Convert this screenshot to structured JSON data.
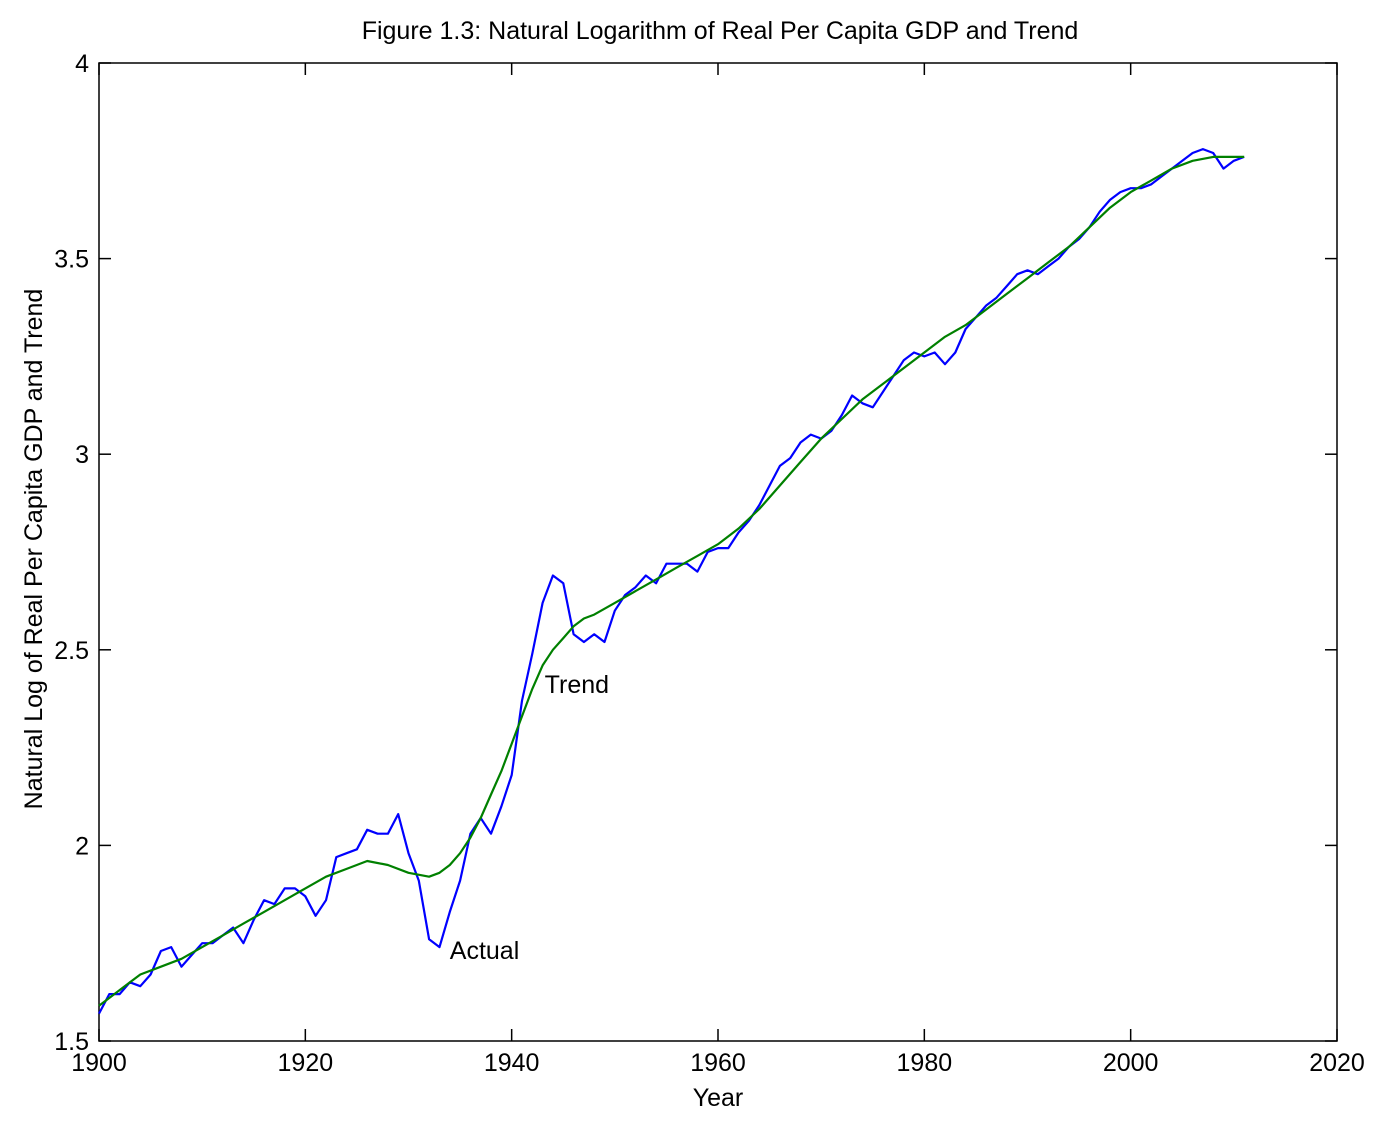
{
  "chart_data": {
    "type": "line",
    "title": "Figure 1.3: Natural Logarithm of Real Per Capita GDP and Trend",
    "xlabel": "Year",
    "ylabel": "Natural Log of Real Per Capita GDP and Trend",
    "xlim": [
      1900,
      2020
    ],
    "ylim": [
      1.5,
      4
    ],
    "xticks": [
      1900,
      1920,
      1940,
      1960,
      1980,
      2000,
      2020
    ],
    "yticks": [
      1.5,
      2,
      2.5,
      3,
      3.5,
      4
    ],
    "xtick_labels": [
      "1900",
      "1920",
      "1940",
      "1960",
      "1980",
      "2000",
      "2020"
    ],
    "ytick_labels": [
      "1.5",
      "2",
      "2.5",
      "3",
      "3.5",
      "4"
    ],
    "grid": false,
    "legend": "none",
    "series": [
      {
        "name": "Actual",
        "color": "#0000ff",
        "x": [
          1900,
          1901,
          1902,
          1903,
          1904,
          1905,
          1906,
          1907,
          1908,
          1909,
          1910,
          1911,
          1912,
          1913,
          1914,
          1915,
          1916,
          1917,
          1918,
          1919,
          1920,
          1921,
          1922,
          1923,
          1924,
          1925,
          1926,
          1927,
          1928,
          1929,
          1930,
          1931,
          1932,
          1933,
          1934,
          1935,
          1936,
          1937,
          1938,
          1939,
          1940,
          1941,
          1942,
          1943,
          1944,
          1945,
          1946,
          1947,
          1948,
          1949,
          1950,
          1951,
          1952,
          1953,
          1954,
          1955,
          1956,
          1957,
          1958,
          1959,
          1960,
          1961,
          1962,
          1963,
          1964,
          1965,
          1966,
          1967,
          1968,
          1969,
          1970,
          1971,
          1972,
          1973,
          1974,
          1975,
          1976,
          1977,
          1978,
          1979,
          1980,
          1981,
          1982,
          1983,
          1984,
          1985,
          1986,
          1987,
          1988,
          1989,
          1990,
          1991,
          1992,
          1993,
          1994,
          1995,
          1996,
          1997,
          1998,
          1999,
          2000,
          2001,
          2002,
          2003,
          2004,
          2005,
          2006,
          2007,
          2008,
          2009,
          2010,
          2011
        ],
        "values": [
          1.57,
          1.62,
          1.62,
          1.65,
          1.64,
          1.67,
          1.73,
          1.74,
          1.69,
          1.72,
          1.75,
          1.75,
          1.77,
          1.79,
          1.75,
          1.81,
          1.86,
          1.85,
          1.89,
          1.89,
          1.87,
          1.82,
          1.86,
          1.97,
          1.98,
          1.99,
          2.04,
          2.03,
          2.03,
          2.08,
          1.98,
          1.91,
          1.76,
          1.74,
          1.83,
          1.91,
          2.03,
          2.07,
          2.03,
          2.1,
          2.18,
          2.37,
          2.49,
          2.62,
          2.69,
          2.67,
          2.54,
          2.52,
          2.54,
          2.52,
          2.6,
          2.64,
          2.66,
          2.69,
          2.67,
          2.72,
          2.72,
          2.72,
          2.7,
          2.75,
          2.76,
          2.76,
          2.8,
          2.83,
          2.87,
          2.92,
          2.97,
          2.99,
          3.03,
          3.05,
          3.04,
          3.06,
          3.1,
          3.15,
          3.13,
          3.12,
          3.16,
          3.2,
          3.24,
          3.26,
          3.25,
          3.26,
          3.23,
          3.26,
          3.32,
          3.35,
          3.38,
          3.4,
          3.43,
          3.46,
          3.47,
          3.46,
          3.48,
          3.5,
          3.53,
          3.55,
          3.58,
          3.62,
          3.65,
          3.67,
          3.68,
          3.68,
          3.69,
          3.71,
          3.73,
          3.75,
          3.77,
          3.78,
          3.77,
          3.73,
          3.75,
          3.76
        ]
      },
      {
        "name": "Trend",
        "color": "#008000",
        "x": [
          1900,
          1902,
          1904,
          1906,
          1908,
          1910,
          1912,
          1914,
          1916,
          1918,
          1920,
          1922,
          1924,
          1926,
          1928,
          1930,
          1932,
          1933,
          1934,
          1935,
          1936,
          1937,
          1938,
          1939,
          1940,
          1941,
          1942,
          1943,
          1944,
          1945,
          1946,
          1947,
          1948,
          1950,
          1952,
          1954,
          1956,
          1958,
          1960,
          1962,
          1964,
          1966,
          1968,
          1970,
          1972,
          1974,
          1976,
          1978,
          1980,
          1982,
          1984,
          1986,
          1988,
          1990,
          1992,
          1994,
          1996,
          1998,
          2000,
          2002,
          2004,
          2006,
          2008,
          2010,
          2011
        ],
        "values": [
          1.59,
          1.63,
          1.67,
          1.69,
          1.71,
          1.74,
          1.77,
          1.8,
          1.83,
          1.86,
          1.89,
          1.92,
          1.94,
          1.96,
          1.95,
          1.93,
          1.92,
          1.93,
          1.95,
          1.98,
          2.02,
          2.07,
          2.13,
          2.19,
          2.26,
          2.33,
          2.4,
          2.46,
          2.5,
          2.53,
          2.56,
          2.58,
          2.59,
          2.62,
          2.65,
          2.68,
          2.71,
          2.74,
          2.77,
          2.81,
          2.86,
          2.92,
          2.98,
          3.04,
          3.09,
          3.14,
          3.18,
          3.22,
          3.26,
          3.3,
          3.33,
          3.37,
          3.41,
          3.45,
          3.49,
          3.53,
          3.58,
          3.63,
          3.67,
          3.7,
          3.73,
          3.75,
          3.76,
          3.76,
          3.76
        ]
      }
    ],
    "annotations": [
      {
        "text": "Trend",
        "x": 1943.2,
        "y": 2.39
      },
      {
        "text": "Actual",
        "x": 1934.0,
        "y": 1.71
      }
    ]
  }
}
